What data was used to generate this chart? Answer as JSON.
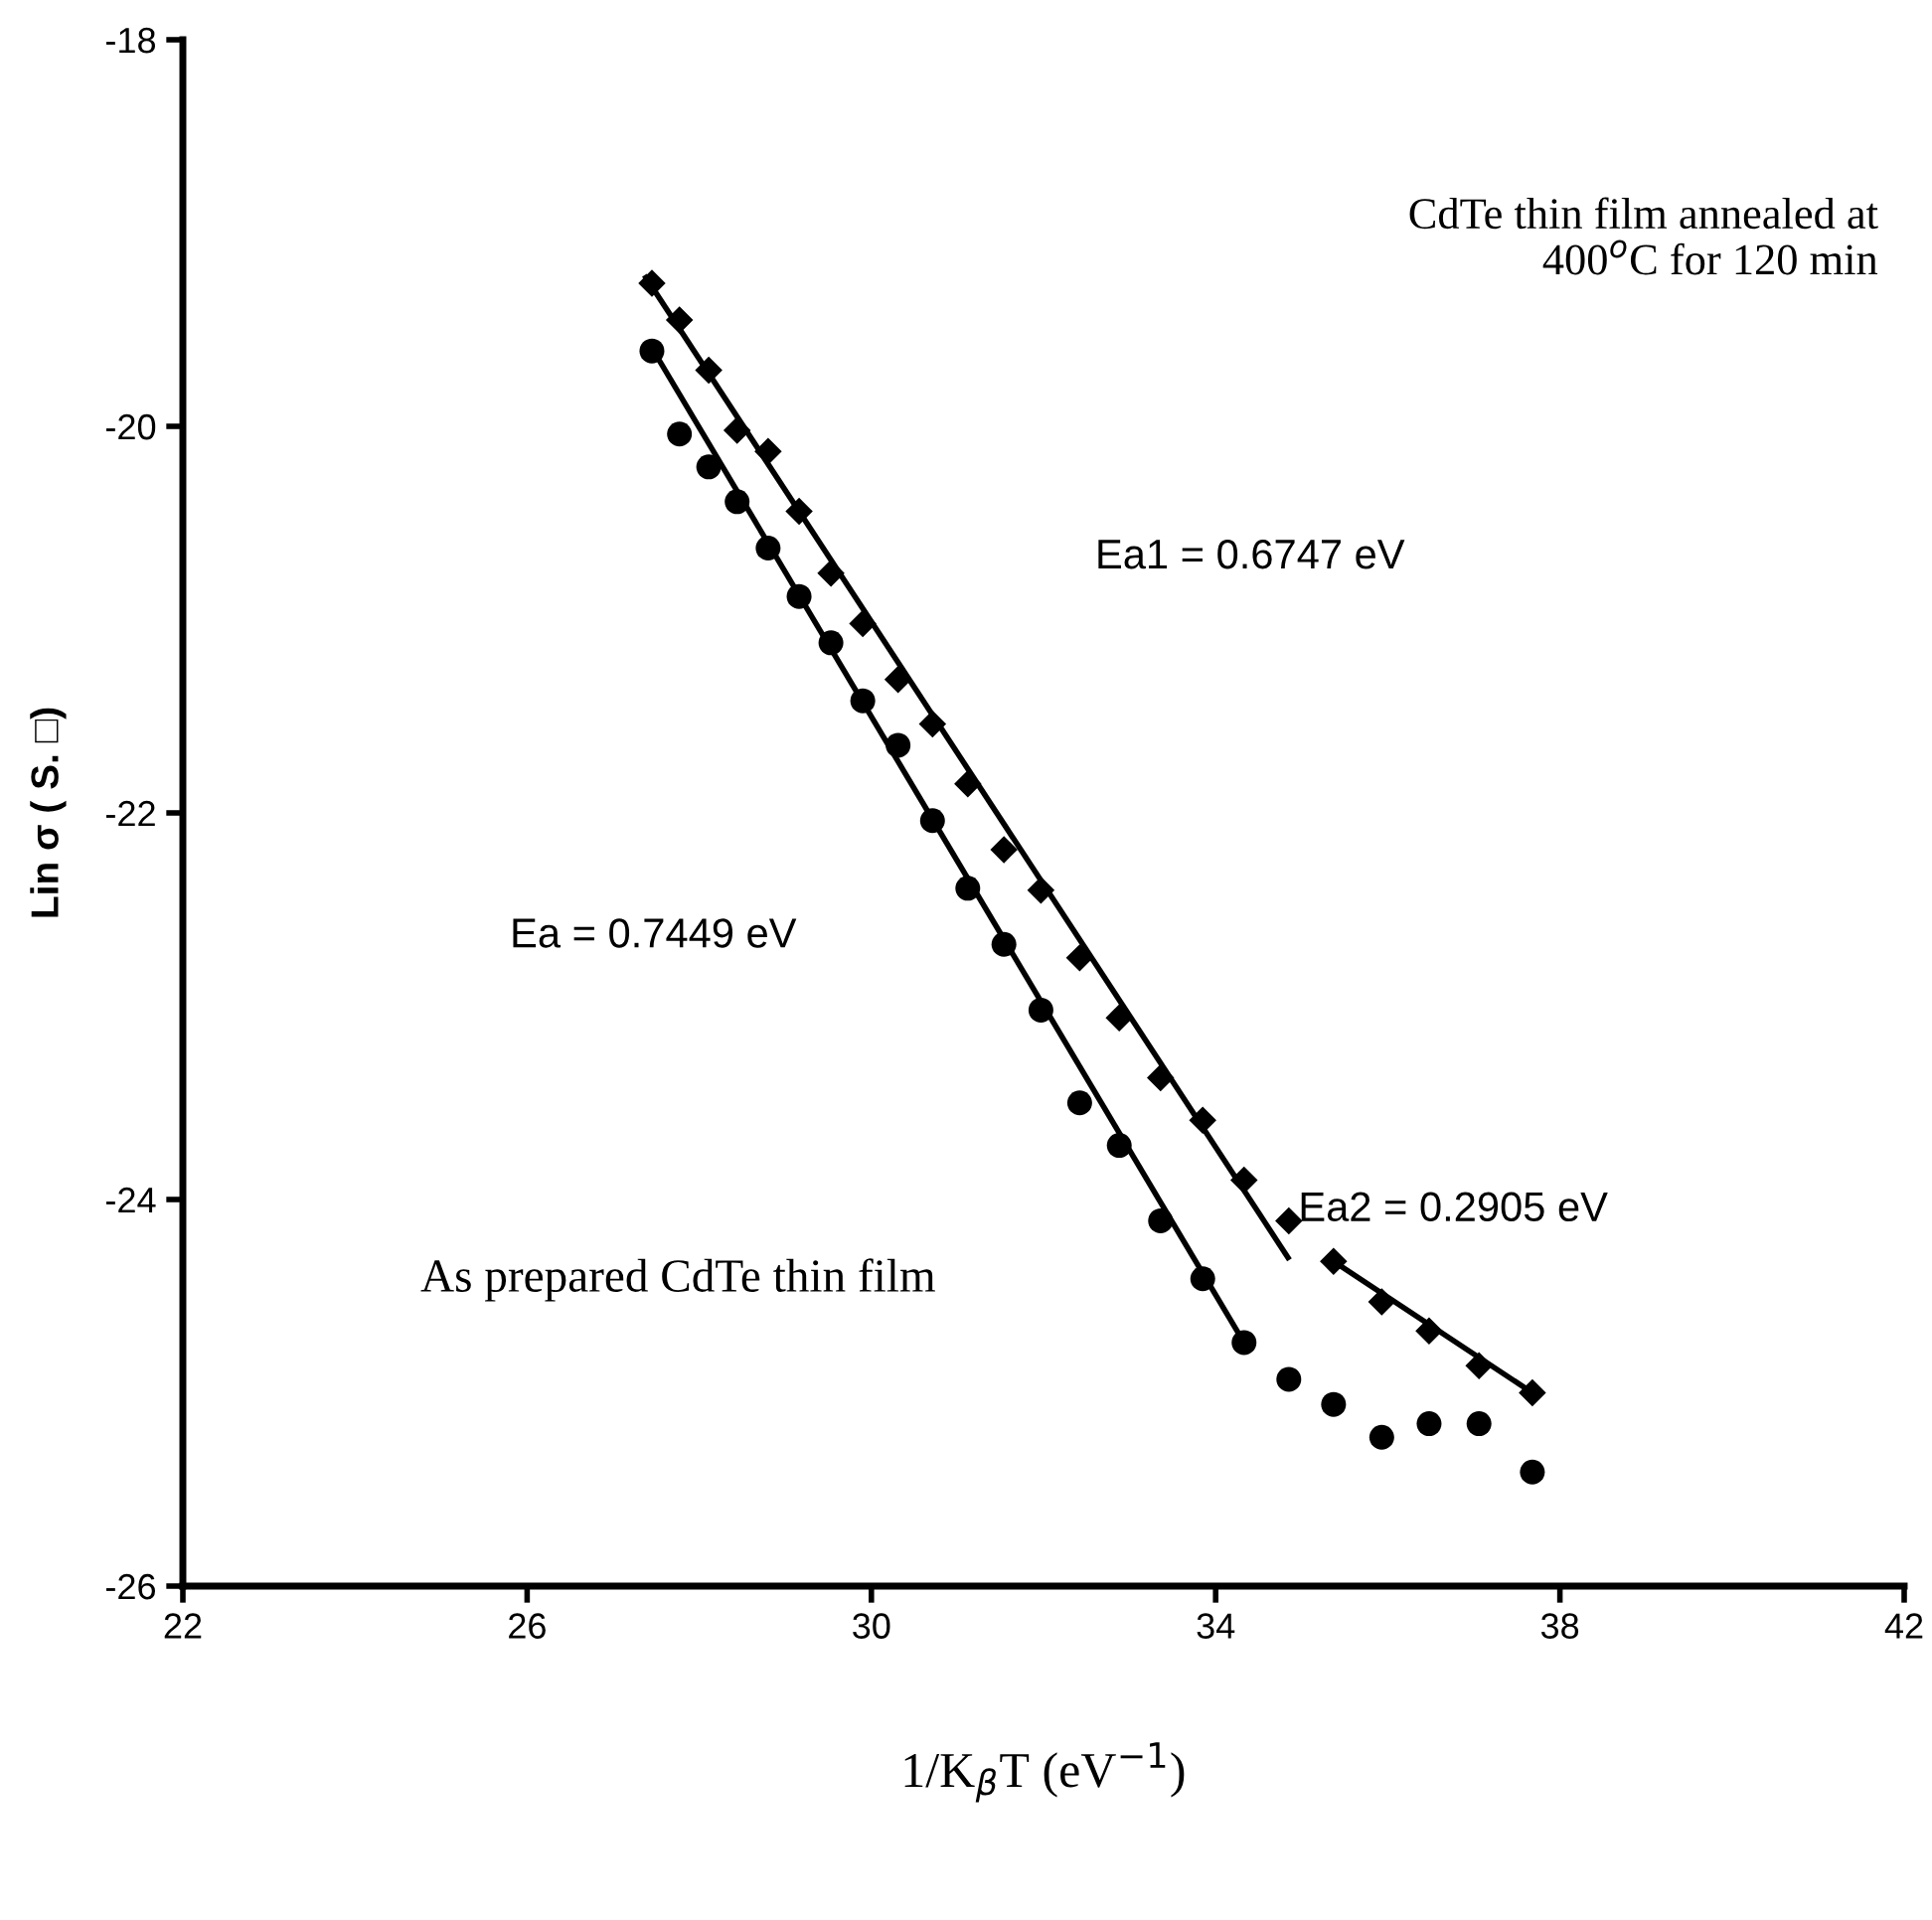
{
  "chart_data": {
    "type": "scatter",
    "xlabel": "1/K$_{β}$T (eV$^{−1}$)",
    "ylabel": "Lin σ ( S. □)",
    "x": [
      27.45,
      27.77,
      28.11,
      28.44,
      28.8,
      29.16,
      29.53,
      29.9,
      30.31,
      30.71,
      31.12,
      31.54,
      31.97,
      32.42,
      32.88,
      33.36,
      33.85,
      34.33,
      34.85,
      35.37,
      35.93,
      36.48,
      37.06,
      37.68
    ],
    "series": [
      {
        "marker": "diamond",
        "color": "#000000",
        "values": [
          -19.26,
          -19.45,
          -19.71,
          -20.02,
          -20.13,
          -20.44,
          -20.76,
          -21.02,
          -21.31,
          -21.54,
          -21.85,
          -22.19,
          -22.4,
          -22.75,
          -23.06,
          -23.37,
          -23.59,
          -23.9,
          -24.11,
          -24.32,
          -24.53,
          -24.68,
          -24.86,
          -25.0
        ]
      },
      {
        "marker": "circle",
        "color": "#000000",
        "values": [
          -19.61,
          -20.04,
          -20.21,
          -20.39,
          -20.63,
          -20.88,
          -21.12,
          -21.42,
          -21.65,
          -22.04,
          -22.39,
          -22.68,
          -23.02,
          -23.5,
          -23.72,
          -24.11,
          -24.41,
          -24.74,
          -24.93,
          -25.06,
          -25.23,
          -25.16,
          -25.16,
          -25.41
        ]
      },
      {
        "type": "line",
        "marker": "none",
        "color": "#000000",
        "x": [
          27.38,
          34.84
        ],
        "values": [
          -19.23,
          -24.3
        ]
      },
      {
        "type": "line",
        "marker": "none",
        "color": "#000000",
        "x": [
          35.37,
          37.68
        ],
        "values": [
          -24.32,
          -25.0
        ]
      },
      {
        "type": "line",
        "marker": "none",
        "color": "#000000",
        "x": [
          27.43,
          34.33
        ],
        "values": [
          -19.58,
          -24.74
        ]
      }
    ],
    "xlim": [
      22,
      42
    ],
    "xticks": [
      22,
      26,
      30,
      34,
      38,
      42
    ],
    "ylim": [
      -26,
      -18
    ],
    "yticks": [
      -26,
      -24,
      -22,
      -20,
      -18
    ],
    "grid": false,
    "legend": false,
    "annotations": [
      "CdTe thin film annealed at\n400$^{o}$C for 120 min",
      "Ea1 = 0.6747 eV",
      "Ea = 0.7449 eV",
      "Ea2 = 0.2905 eV",
      "As prepared CdTe thin film"
    ]
  }
}
